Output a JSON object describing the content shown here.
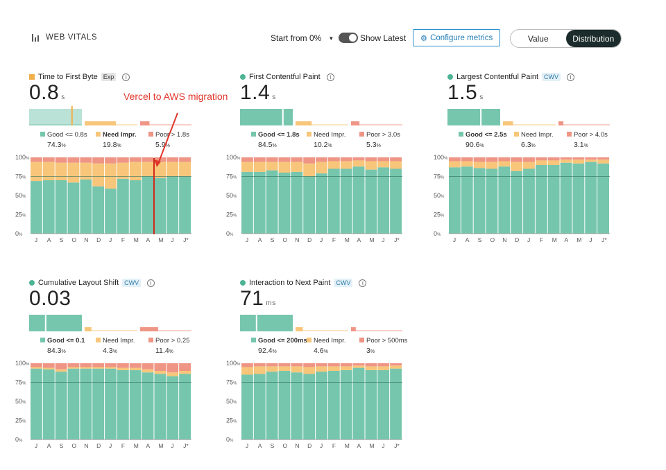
{
  "header": {
    "title": "WEB VITALS",
    "start_from": "Start from 0%",
    "show_latest": "Show Latest",
    "configure": "Configure metrics",
    "seg_value": "Value",
    "seg_distribution": "Distribution"
  },
  "annotation": {
    "text": "Vercel to AWS migration"
  },
  "colors": {
    "good": "#76c6ad",
    "need": "#f7c67a",
    "poor": "#ef9585",
    "good_line": "#3e9e82",
    "accent": "#4db394"
  },
  "months": [
    "J",
    "A",
    "S",
    "O",
    "N",
    "D",
    "J",
    "F",
    "M",
    "A",
    "M",
    "J",
    "J*"
  ],
  "y_ticks": [
    "100",
    "75",
    "50",
    "25",
    "0"
  ],
  "y_suffix": "%",
  "metrics": [
    {
      "title": "Time to First Byte",
      "tag": "Exp",
      "value": "0.8",
      "unit": "s",
      "dist": {
        "good": 74.3,
        "need": 19.8,
        "poor": 5.9,
        "marker": 0.8
      },
      "legend": {
        "good_label": "Good <= 0.8s",
        "good_pct": "74.3",
        "need_label": "Need Impr.",
        "need_pct": "19.8",
        "poor_label": "Poor > 1.8s",
        "poor_pct": "5.9"
      },
      "chart_data": {
        "type": "bar",
        "categories": [
          "J",
          "A",
          "S",
          "O",
          "N",
          "D",
          "J",
          "F",
          "M",
          "A",
          "M",
          "J",
          "J*"
        ],
        "ylim": [
          0,
          100
        ],
        "series": [
          {
            "name": "Good",
            "values": [
              69,
              70,
              70,
              67,
              71,
              62,
              59,
              72,
              70,
              75,
              73,
              75,
              75
            ]
          },
          {
            "name": "Need Impr.",
            "values": [
              25,
              24,
              23,
              26,
              22,
              30,
              33,
              21,
              24,
              19,
              21,
              19,
              19
            ]
          },
          {
            "name": "Poor",
            "values": [
              6,
              6,
              7,
              7,
              7,
              8,
              8,
              7,
              6,
              6,
              6,
              6,
              6
            ]
          }
        ]
      }
    },
    {
      "title": "First Contentful Paint",
      "tag": "",
      "value": "1.4",
      "unit": "s",
      "dist": {
        "good": 84.5,
        "need": 10.2,
        "poor": 5.3,
        "marker": 0.8
      },
      "legend": {
        "good_label": "Good <= 1.8s",
        "good_pct": "84.5",
        "need_label": "Need Impr.",
        "need_pct": "10.2",
        "poor_label": "Poor > 3.0s",
        "poor_pct": "5.3"
      },
      "chart_data": {
        "type": "bar",
        "categories": [
          "J",
          "A",
          "S",
          "O",
          "N",
          "D",
          "J",
          "F",
          "M",
          "A",
          "M",
          "J",
          "J*"
        ],
        "ylim": [
          0,
          100
        ],
        "series": [
          {
            "name": "Good",
            "values": [
              81,
              81,
              83,
              80,
              81,
              75,
              79,
              85,
              85,
              88,
              84,
              87,
              85
            ]
          },
          {
            "name": "Need Impr.",
            "values": [
              13,
              13,
              11,
              14,
              13,
              17,
              15,
              10,
              10,
              8,
              11,
              8,
              10
            ]
          },
          {
            "name": "Poor",
            "values": [
              6,
              6,
              6,
              6,
              6,
              8,
              6,
              5,
              5,
              4,
              5,
              5,
              5
            ]
          }
        ]
      }
    },
    {
      "title": "Largest Contentful Paint",
      "tag": "CWV",
      "value": "1.5",
      "unit": "s",
      "dist": {
        "good": 90.6,
        "need": 6.3,
        "poor": 3.1,
        "marker": 0.62
      },
      "legend": {
        "good_label": "Good <= 2.5s",
        "good_pct": "90.6",
        "need_label": "Need Impr.",
        "need_pct": "6.3",
        "poor_label": "Poor > 4.0s",
        "poor_pct": "3.1"
      },
      "chart_data": {
        "type": "bar",
        "categories": [
          "J",
          "A",
          "S",
          "O",
          "N",
          "D",
          "J",
          "F",
          "M",
          "A",
          "M",
          "J",
          "J*"
        ],
        "ylim": [
          0,
          100
        ],
        "series": [
          {
            "name": "Good",
            "values": [
              87,
              88,
              86,
              85,
              88,
              82,
              85,
              90,
              90,
              93,
              92,
              94,
              92
            ]
          },
          {
            "name": "Need Impr.",
            "values": [
              8,
              7,
              8,
              9,
              7,
              12,
              9,
              6,
              6,
              4,
              5,
              3,
              5
            ]
          },
          {
            "name": "Poor",
            "values": [
              5,
              5,
              6,
              6,
              5,
              6,
              6,
              4,
              4,
              3,
              3,
              3,
              3
            ]
          }
        ]
      }
    },
    {
      "title": "Cumulative Layout Shift",
      "tag": "CWV",
      "value": "0.03",
      "unit": "",
      "dist": {
        "good": 84.3,
        "need": 4.3,
        "poor": 11.4,
        "marker": 0.3
      },
      "legend": {
        "good_label": "Good <= 0.1",
        "good_pct": "84.3",
        "need_label": "Need Impr.",
        "need_pct": "4.3",
        "poor_label": "Poor > 0.25",
        "poor_pct": "11.4"
      },
      "chart_data": {
        "type": "bar",
        "categories": [
          "J",
          "A",
          "S",
          "O",
          "N",
          "D",
          "J",
          "F",
          "M",
          "A",
          "M",
          "J",
          "J*"
        ],
        "ylim": [
          0,
          100
        ],
        "series": [
          {
            "name": "Good",
            "values": [
              93,
              92,
              89,
              93,
              93,
              93,
              93,
              91,
              91,
              88,
              86,
              83,
              86
            ]
          },
          {
            "name": "Need Impr.",
            "values": [
              2,
              2,
              3,
              2,
              2,
              2,
              2,
              3,
              3,
              4,
              4,
              5,
              4
            ]
          },
          {
            "name": "Poor",
            "values": [
              5,
              6,
              8,
              5,
              5,
              5,
              5,
              6,
              6,
              8,
              10,
              12,
              10
            ]
          }
        ]
      }
    },
    {
      "title": "Interaction to Next Paint",
      "tag": "CWV",
      "value": "71",
      "unit": "ms",
      "dist": {
        "good": 92.4,
        "need": 4.6,
        "poor": 3.0,
        "marker": 0.3
      },
      "legend": {
        "good_label": "Good <= 200ms",
        "good_pct": "92.4",
        "need_label": "Need Impr.",
        "need_pct": "4.6",
        "poor_label": "Poor > 500ms",
        "poor_pct": "3"
      },
      "chart_data": {
        "type": "bar",
        "categories": [
          "J",
          "A",
          "S",
          "O",
          "N",
          "D",
          "J",
          "F",
          "M",
          "A",
          "M",
          "J",
          "J*"
        ],
        "ylim": [
          0,
          100
        ],
        "series": [
          {
            "name": "Good",
            "values": [
              85,
              86,
              89,
              90,
              88,
              86,
              89,
              90,
              91,
              94,
              91,
              91,
              93
            ]
          },
          {
            "name": "Need Impr.",
            "values": [
              10,
              10,
              7,
              6,
              8,
              9,
              7,
              6,
              5,
              3,
              5,
              5,
              4
            ]
          },
          {
            "name": "Poor",
            "values": [
              5,
              4,
              4,
              4,
              4,
              5,
              4,
              4,
              4,
              3,
              4,
              4,
              3
            ]
          }
        ]
      }
    }
  ]
}
